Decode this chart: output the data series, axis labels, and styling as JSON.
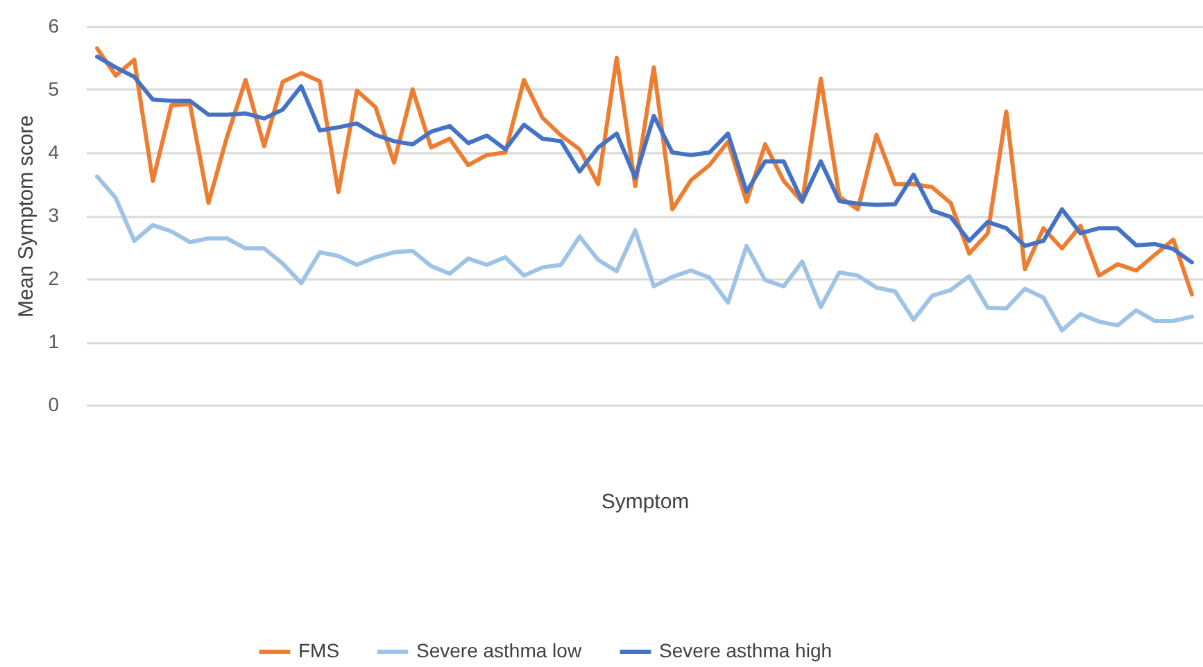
{
  "chart_data": {
    "type": "line",
    "xlabel": "Symptom",
    "ylabel": "Mean Symptom score",
    "categories": [
      null,
      null,
      null,
      null,
      null,
      null,
      null,
      null,
      null,
      null,
      null,
      null,
      null,
      null,
      null,
      null,
      null,
      null,
      null,
      null,
      null,
      null,
      null,
      null,
      null,
      null,
      null,
      null,
      null,
      null,
      null,
      null,
      null,
      null,
      null,
      null,
      null,
      null,
      null,
      null,
      null,
      null,
      null,
      null,
      null,
      null,
      null,
      null,
      null,
      null,
      null,
      null,
      null,
      null,
      null,
      null,
      null,
      null,
      null,
      null
    ],
    "series": [
      {
        "name": "FMS",
        "color": "#ed7d31",
        "values": [
          5.65,
          5.22,
          5.47,
          3.55,
          4.75,
          4.77,
          3.2,
          4.25,
          5.15,
          4.1,
          5.12,
          5.26,
          5.13,
          3.37,
          4.98,
          4.72,
          3.84,
          5.0,
          4.08,
          4.22,
          3.8,
          3.96,
          4.0,
          5.15,
          4.55,
          4.27,
          4.05,
          3.5,
          5.5,
          3.47,
          5.35,
          3.1,
          3.56,
          3.8,
          4.17,
          3.22,
          4.13,
          3.55,
          3.22,
          5.17,
          3.3,
          3.1,
          4.28,
          3.5,
          3.5,
          3.45,
          3.2,
          2.4,
          2.72,
          4.65,
          2.15,
          2.8,
          2.48,
          2.84,
          2.05,
          2.23,
          2.13,
          2.38,
          2.62,
          1.75
        ]
      },
      {
        "name": "Severe asthma low",
        "color": "#9dc3e6",
        "values": [
          3.62,
          3.28,
          2.6,
          2.85,
          2.75,
          2.58,
          2.64,
          2.64,
          2.48,
          2.48,
          2.24,
          1.93,
          2.42,
          2.36,
          2.22,
          2.34,
          2.42,
          2.44,
          2.2,
          2.08,
          2.32,
          2.22,
          2.34,
          2.05,
          2.18,
          2.22,
          2.67,
          2.3,
          2.12,
          2.77,
          1.88,
          2.03,
          2.13,
          2.02,
          1.62,
          2.52,
          1.98,
          1.88,
          2.27,
          1.55,
          2.1,
          2.05,
          1.86,
          1.8,
          1.35,
          1.73,
          1.82,
          2.04,
          1.54,
          1.53,
          1.84,
          1.7,
          1.18,
          1.44,
          1.32,
          1.26,
          1.5,
          1.33,
          1.33,
          1.4
        ]
      },
      {
        "name": "Severe asthma high",
        "color": "#4472c4",
        "values": [
          5.52,
          5.35,
          5.2,
          4.84,
          4.82,
          4.82,
          4.6,
          4.6,
          4.62,
          4.54,
          4.68,
          5.05,
          4.35,
          4.4,
          4.46,
          4.28,
          4.18,
          4.13,
          4.33,
          4.42,
          4.15,
          4.27,
          4.05,
          4.44,
          4.22,
          4.18,
          3.7,
          4.08,
          4.3,
          3.6,
          4.58,
          4.0,
          3.96,
          4.0,
          4.3,
          3.38,
          3.86,
          3.86,
          3.23,
          3.86,
          3.23,
          3.19,
          3.17,
          3.18,
          3.65,
          3.08,
          2.98,
          2.6,
          2.9,
          2.8,
          2.52,
          2.6,
          3.1,
          2.72,
          2.8,
          2.8,
          2.53,
          2.55,
          2.47,
          2.26
        ]
      }
    ],
    "ylim": [
      0,
      6
    ],
    "yticks": [
      0,
      1,
      2,
      3,
      4,
      5,
      6
    ],
    "grid": "y",
    "legend": "bottom",
    "marker": "none",
    "line_style": "solid"
  }
}
